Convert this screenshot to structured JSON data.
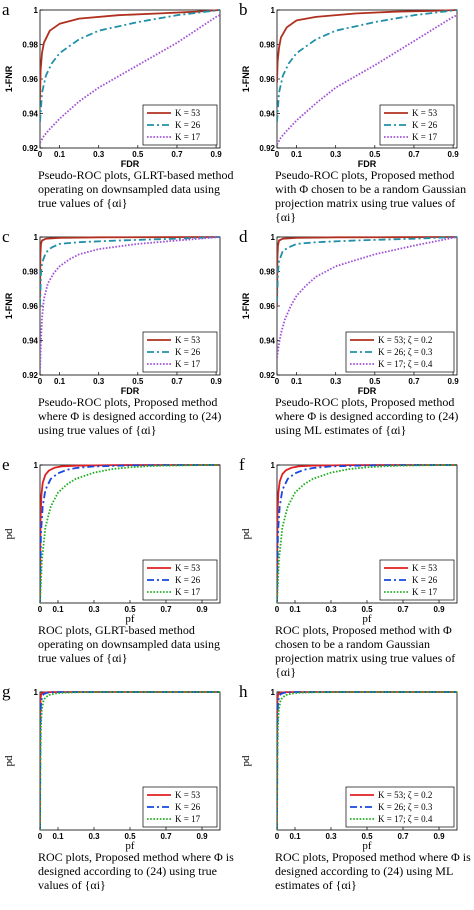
{
  "panels": [
    {
      "label": "a",
      "caption": "Pseudo-ROC plots, GLRT-based method operating on downsampled data using true values of {αi}"
    },
    {
      "label": "b",
      "caption": "Pseudo-ROC plots, Proposed method with Φ chosen to be a random Gaussian projection matrix using true values of {αi}"
    },
    {
      "label": "c",
      "caption": "Pseudo-ROC plots, Proposed method where Φ is designed according to (24) using true values of {αi}"
    },
    {
      "label": "d",
      "caption": "Pseudo-ROC plots, Proposed method where Φ is designed according to (24) using ML estimates of {αi}"
    },
    {
      "label": "e",
      "caption": "ROC plots, GLRT-based method operating on downsampled data using true values of {αi}"
    },
    {
      "label": "f",
      "caption": "ROC plots, Proposed method with Φ chosen to be a random Gaussian projection matrix using true values of {αi}"
    },
    {
      "label": "g",
      "caption": "ROC plots, Proposed method where Φ is designed according to (24) using true values of {αi}"
    },
    {
      "label": "h",
      "caption": "ROC plots, Proposed method where Φ is designed according to (24) using ML estimates of {αi}"
    }
  ],
  "chart_data": [
    {
      "type": "line",
      "xlabel": "FDR",
      "ylabel": "1-FNR",
      "xlim": [
        0,
        0.92
      ],
      "ylim": [
        0.92,
        1
      ],
      "xticks": [
        "0",
        "0.1",
        "0.3",
        "0.5",
        "0.7",
        "0.9"
      ],
      "yticks": [
        "0.92",
        "0.94",
        "0.96",
        "0.98",
        "1"
      ],
      "legend": "bottom-right",
      "series": [
        {
          "name": "K = 53",
          "color": "#b03020",
          "dash": "solid",
          "x": [
            0,
            0.003,
            0.01,
            0.02,
            0.05,
            0.1,
            0.2,
            0.4,
            0.6,
            0.8,
            0.92
          ],
          "y": [
            0.948,
            0.965,
            0.975,
            0.981,
            0.988,
            0.992,
            0.995,
            0.997,
            0.998,
            0.999,
            1
          ]
        },
        {
          "name": "K = 26",
          "color": "#2090a8",
          "dash": "dashdot",
          "x": [
            0,
            0.01,
            0.03,
            0.06,
            0.1,
            0.2,
            0.3,
            0.5,
            0.7,
            0.92
          ],
          "y": [
            0.935,
            0.952,
            0.962,
            0.969,
            0.975,
            0.983,
            0.988,
            0.993,
            0.997,
            1
          ]
        },
        {
          "name": "K = 17",
          "color": "#a050d8",
          "dash": "dot",
          "x": [
            0,
            0.02,
            0.05,
            0.1,
            0.2,
            0.3,
            0.5,
            0.7,
            0.9,
            0.92
          ],
          "y": [
            0.923,
            0.927,
            0.931,
            0.937,
            0.947,
            0.955,
            0.968,
            0.981,
            0.996,
            0.997
          ]
        }
      ]
    },
    {
      "type": "line",
      "xlabel": "FDR",
      "ylabel": "1-FNR",
      "xlim": [
        0,
        0.92
      ],
      "ylim": [
        0.92,
        1
      ],
      "xticks": [
        "0",
        "0.1",
        "0.3",
        "0.5",
        "0.7",
        "0.9"
      ],
      "yticks": [
        "0.92",
        "0.94",
        "0.96",
        "0.98",
        "1"
      ],
      "legend": "bottom-right",
      "series": [
        {
          "name": "K = 53",
          "color": "#b03020",
          "dash": "solid",
          "x": [
            0,
            0.003,
            0.01,
            0.02,
            0.05,
            0.1,
            0.2,
            0.4,
            0.6,
            0.8,
            0.92
          ],
          "y": [
            0.958,
            0.97,
            0.978,
            0.984,
            0.99,
            0.994,
            0.996,
            0.998,
            0.999,
            0.9995,
            1
          ]
        },
        {
          "name": "K = 26",
          "color": "#2090a8",
          "dash": "dashdot",
          "x": [
            0,
            0.01,
            0.03,
            0.06,
            0.1,
            0.2,
            0.3,
            0.5,
            0.7,
            0.92
          ],
          "y": [
            0.935,
            0.952,
            0.962,
            0.969,
            0.975,
            0.983,
            0.988,
            0.993,
            0.997,
            1
          ]
        },
        {
          "name": "K = 17",
          "color": "#a050d8",
          "dash": "dot",
          "x": [
            0,
            0.02,
            0.05,
            0.1,
            0.2,
            0.3,
            0.5,
            0.7,
            0.9,
            0.92
          ],
          "y": [
            0.922,
            0.926,
            0.93,
            0.936,
            0.946,
            0.955,
            0.968,
            0.982,
            0.996,
            0.997
          ]
        }
      ]
    },
    {
      "type": "line",
      "xlabel": "FDR",
      "ylabel": "1-FNR",
      "xlim": [
        0,
        0.92
      ],
      "ylim": [
        0.92,
        1
      ],
      "xticks": [
        "0",
        "0.1",
        "0.3",
        "0.5",
        "0.7",
        "0.9"
      ],
      "yticks": [
        "0.92",
        "0.94",
        "0.96",
        "0.98",
        "1"
      ],
      "legend": "bottom-right",
      "series": [
        {
          "name": "K = 53",
          "color": "#b03020",
          "dash": "solid",
          "x": [
            0,
            0.002,
            0.005,
            0.01,
            0.03,
            0.1,
            0.3,
            0.6,
            0.92
          ],
          "y": [
            0.965,
            0.99,
            0.996,
            0.998,
            0.999,
            0.9995,
            0.9998,
            0.9999,
            1
          ]
        },
        {
          "name": "K = 26",
          "color": "#2090a8",
          "dash": "dashdot",
          "x": [
            0,
            0.005,
            0.01,
            0.03,
            0.06,
            0.1,
            0.2,
            0.4,
            0.7,
            0.92
          ],
          "y": [
            0.96,
            0.979,
            0.985,
            0.991,
            0.994,
            0.996,
            0.997,
            0.998,
            0.999,
            1
          ]
        },
        {
          "name": "K = 17",
          "color": "#a050d8",
          "dash": "dot",
          "x": [
            0,
            0.005,
            0.01,
            0.02,
            0.04,
            0.07,
            0.1,
            0.15,
            0.2,
            0.3,
            0.5,
            0.7,
            0.92
          ],
          "y": [
            0.922,
            0.94,
            0.953,
            0.964,
            0.973,
            0.979,
            0.983,
            0.987,
            0.99,
            0.993,
            0.996,
            0.998,
            1
          ]
        }
      ]
    },
    {
      "type": "line",
      "xlabel": "FDR",
      "ylabel": "1-FNR",
      "xlim": [
        0,
        0.92
      ],
      "ylim": [
        0.92,
        1
      ],
      "xticks": [
        "0",
        "0.1",
        "0.3",
        "0.5",
        "0.7",
        "0.9"
      ],
      "yticks": [
        "0.92",
        "0.94",
        "0.96",
        "0.98",
        "1"
      ],
      "legend": "bottom-right",
      "series": [
        {
          "name": "K = 53;  ζ = 0.2",
          "color": "#b03020",
          "dash": "solid",
          "x": [
            0,
            0.002,
            0.005,
            0.01,
            0.03,
            0.1,
            0.3,
            0.6,
            0.92
          ],
          "y": [
            0.96,
            0.988,
            0.995,
            0.998,
            0.999,
            0.9995,
            0.9998,
            0.9999,
            1
          ]
        },
        {
          "name": "K = 26;  ζ = 0.3",
          "color": "#2090a8",
          "dash": "dashdot",
          "x": [
            0,
            0.005,
            0.01,
            0.03,
            0.06,
            0.1,
            0.2,
            0.4,
            0.7,
            0.92
          ],
          "y": [
            0.962,
            0.98,
            0.986,
            0.992,
            0.994,
            0.996,
            0.997,
            0.998,
            0.999,
            1
          ]
        },
        {
          "name": "K = 17;  ζ = 0.4",
          "color": "#a050d8",
          "dash": "dot",
          "x": [
            0,
            0.005,
            0.01,
            0.02,
            0.04,
            0.07,
            0.1,
            0.15,
            0.2,
            0.3,
            0.5,
            0.7,
            0.92
          ],
          "y": [
            0.93,
            0.934,
            0.938,
            0.944,
            0.952,
            0.96,
            0.966,
            0.972,
            0.977,
            0.983,
            0.99,
            0.995,
            1
          ]
        }
      ]
    },
    {
      "type": "line",
      "xlabel": "pf",
      "ylabel": "pd",
      "xlim": [
        0,
        1
      ],
      "ylim": [
        0,
        1
      ],
      "xticks": [
        "0",
        "0.1",
        "0.3",
        "0.5",
        "0.7",
        "0.9"
      ],
      "yticks": [
        "1"
      ],
      "legend": "bottom-right",
      "series": [
        {
          "name": "K = 53",
          "color": "#e02020",
          "dash": "solid",
          "x": [
            0,
            0.003,
            0.008,
            0.015,
            0.03,
            0.05,
            0.08,
            0.12,
            0.2,
            0.4,
            0.7,
            1
          ],
          "y": [
            0,
            0.6,
            0.78,
            0.87,
            0.93,
            0.96,
            0.98,
            0.99,
            0.995,
            0.999,
            1,
            1
          ]
        },
        {
          "name": "K = 26",
          "color": "#1848e0",
          "dash": "dashdot",
          "x": [
            0,
            0.005,
            0.015,
            0.03,
            0.06,
            0.1,
            0.15,
            0.2,
            0.3,
            0.5,
            0.8,
            1
          ],
          "y": [
            0,
            0.5,
            0.7,
            0.82,
            0.9,
            0.94,
            0.965,
            0.978,
            0.99,
            0.997,
            1,
            1
          ]
        },
        {
          "name": "K = 17",
          "color": "#20b020",
          "dash": "dot",
          "x": [
            0,
            0.01,
            0.03,
            0.06,
            0.1,
            0.15,
            0.2,
            0.3,
            0.4,
            0.5,
            0.6,
            0.7,
            0.8,
            0.9,
            1
          ],
          "y": [
            0,
            0.3,
            0.55,
            0.7,
            0.8,
            0.86,
            0.9,
            0.945,
            0.97,
            0.983,
            0.991,
            0.996,
            0.998,
            0.9995,
            1
          ]
        }
      ]
    },
    {
      "type": "line",
      "xlabel": "pf",
      "ylabel": "pd",
      "xlim": [
        0,
        1
      ],
      "ylim": [
        0,
        1
      ],
      "xticks": [
        "0",
        "0.1",
        "0.3",
        "0.5",
        "0.7",
        "0.9"
      ],
      "yticks": [
        "1"
      ],
      "legend": "bottom-right",
      "series": [
        {
          "name": "K = 53",
          "color": "#e02020",
          "dash": "solid",
          "x": [
            0,
            0.003,
            0.008,
            0.015,
            0.03,
            0.05,
            0.08,
            0.12,
            0.2,
            0.4,
            0.7,
            1
          ],
          "y": [
            0,
            0.65,
            0.8,
            0.88,
            0.935,
            0.962,
            0.98,
            0.99,
            0.996,
            0.999,
            1,
            1
          ]
        },
        {
          "name": "K = 26",
          "color": "#1848e0",
          "dash": "dashdot",
          "x": [
            0,
            0.005,
            0.015,
            0.03,
            0.06,
            0.1,
            0.15,
            0.2,
            0.3,
            0.5,
            0.8,
            1
          ],
          "y": [
            0,
            0.5,
            0.7,
            0.82,
            0.9,
            0.94,
            0.965,
            0.978,
            0.99,
            0.997,
            1,
            1
          ]
        },
        {
          "name": "K = 17",
          "color": "#20b020",
          "dash": "dot",
          "x": [
            0,
            0.01,
            0.03,
            0.06,
            0.1,
            0.15,
            0.2,
            0.3,
            0.4,
            0.5,
            0.6,
            0.7,
            0.8,
            0.9,
            1
          ],
          "y": [
            0,
            0.3,
            0.55,
            0.7,
            0.8,
            0.86,
            0.9,
            0.945,
            0.97,
            0.983,
            0.991,
            0.996,
            0.998,
            0.9995,
            1
          ]
        }
      ]
    },
    {
      "type": "line",
      "xlabel": "pf",
      "ylabel": "pd",
      "xlim": [
        0,
        1
      ],
      "ylim": [
        0,
        1
      ],
      "xticks": [
        "0",
        "0.1",
        "0.3",
        "0.5",
        "0.7",
        "0.9"
      ],
      "yticks": [
        "1"
      ],
      "legend": "bottom-right",
      "series": [
        {
          "name": "K = 53",
          "color": "#e02020",
          "dash": "solid",
          "x": [
            0,
            0.001,
            0.003,
            0.006,
            0.01,
            0.02,
            0.05,
            0.2,
            1
          ],
          "y": [
            0,
            0.8,
            0.95,
            0.98,
            0.99,
            0.996,
            0.999,
            1,
            1
          ]
        },
        {
          "name": "K = 26",
          "color": "#1848e0",
          "dash": "dashdot",
          "x": [
            0,
            0.002,
            0.005,
            0.01,
            0.02,
            0.04,
            0.08,
            0.2,
            1
          ],
          "y": [
            0,
            0.75,
            0.9,
            0.96,
            0.985,
            0.995,
            0.999,
            1,
            1
          ]
        },
        {
          "name": "K = 17",
          "color": "#20b020",
          "dash": "dot",
          "x": [
            0,
            0.002,
            0.005,
            0.01,
            0.02,
            0.03,
            0.05,
            0.08,
            0.12,
            0.2,
            0.4,
            1
          ],
          "y": [
            0,
            0.5,
            0.75,
            0.87,
            0.94,
            0.96,
            0.978,
            0.988,
            0.994,
            0.998,
            1,
            1
          ]
        }
      ]
    },
    {
      "type": "line",
      "xlabel": "pf",
      "ylabel": "pd",
      "xlim": [
        0,
        1
      ],
      "ylim": [
        0,
        1
      ],
      "xticks": [
        "0",
        "0.1",
        "0.3",
        "0.5",
        "0.7",
        "0.9"
      ],
      "yticks": [
        "1"
      ],
      "legend": "bottom-right",
      "series": [
        {
          "name": "K = 53;  ζ = 0.2",
          "color": "#e02020",
          "dash": "solid",
          "x": [
            0,
            0.001,
            0.003,
            0.006,
            0.01,
            0.02,
            0.05,
            0.2,
            1
          ],
          "y": [
            0,
            0.8,
            0.95,
            0.98,
            0.99,
            0.996,
            0.999,
            1,
            1
          ]
        },
        {
          "name": "K = 26;  ζ = 0.3",
          "color": "#1848e0",
          "dash": "dashdot",
          "x": [
            0,
            0.002,
            0.005,
            0.01,
            0.02,
            0.04,
            0.08,
            0.2,
            1
          ],
          "y": [
            0,
            0.75,
            0.9,
            0.96,
            0.985,
            0.995,
            0.999,
            1,
            1
          ]
        },
        {
          "name": "K = 17;  ζ = 0.4",
          "color": "#20b020",
          "dash": "dot",
          "x": [
            0,
            0.002,
            0.005,
            0.01,
            0.02,
            0.03,
            0.05,
            0.08,
            0.12,
            0.2,
            0.4,
            1
          ],
          "y": [
            0,
            0.5,
            0.75,
            0.87,
            0.94,
            0.96,
            0.978,
            0.988,
            0.994,
            0.998,
            1,
            1
          ]
        }
      ]
    }
  ]
}
